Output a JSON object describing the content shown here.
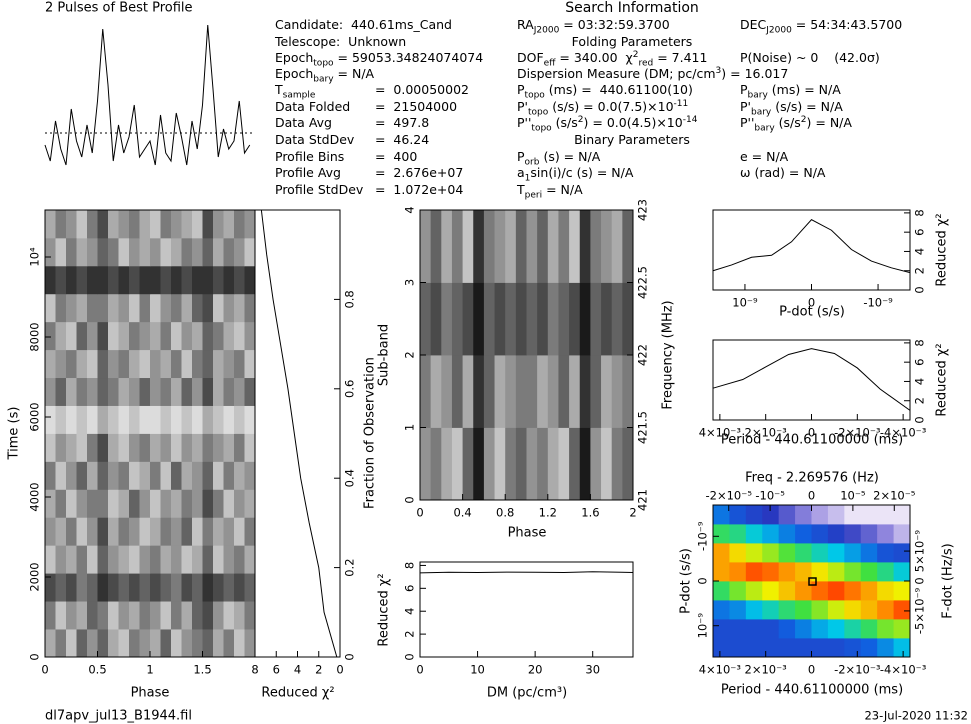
{
  "search_title": "Search Information",
  "footer": {
    "file": "dl7apv_jul13_B1944.fil",
    "date": "23-Jul-2020 11:32"
  },
  "info": {
    "lines": [
      [
        "Candidate:  440.61ms_Cand"
      ],
      [
        "Telescope:  Unknown"
      ],
      [
        "Epoch",
        {
          "sub": "topo"
        },
        " = 59053.34824074074"
      ],
      [
        "Epoch",
        {
          "sub": "bary"
        },
        " = N/A"
      ]
    ],
    "table": [
      {
        "label": [
          "T",
          {
            "sub": "sample"
          }
        ],
        "value": "=  0.00050002"
      },
      {
        "label": [
          "Data Folded"
        ],
        "value": "=  21504000"
      },
      {
        "label": [
          "Data Avg"
        ],
        "value": "=  497.8"
      },
      {
        "label": [
          "Data StdDev"
        ],
        "value": "=  46.24"
      },
      {
        "label": [
          "Profile Bins"
        ],
        "value": "=  400"
      },
      {
        "label": [
          "Profile Avg"
        ],
        "value": "=  2.676e+07"
      },
      {
        "label": [
          "Profile StdDev"
        ],
        "value": "=  1.072e+04"
      }
    ]
  },
  "search": {
    "lines": [
      {
        "left": [
          "RA",
          {
            "sub": "J2000"
          },
          " = 03:32:59.3700"
        ],
        "right": [
          "DEC",
          {
            "sub": "J2000"
          },
          " = 54:34:43.5700"
        ]
      },
      {
        "center": "Folding Parameters"
      },
      {
        "left": [
          "DOF",
          {
            "sub": "eff"
          },
          " = 340.00  χ",
          {
            "sup": "2"
          },
          {
            "sub": "red"
          },
          " = 7.411"
        ],
        "right": [
          "P(Noise) ~ 0    (42.0σ)"
        ]
      },
      {
        "left": [
          "Dispersion Measure (DM; pc/cm",
          {
            "sup": "3"
          },
          ") = 16.017"
        ]
      },
      {
        "left": [
          "P",
          {
            "sub": "topo"
          },
          " (ms) =  440.61100(10)"
        ],
        "right": [
          "P",
          {
            "sub": "bary"
          },
          " (ms) = N/A"
        ]
      },
      {
        "left": [
          "P'",
          {
            "sub": "topo"
          },
          " (s/s) = 0.0(7.5)×10",
          {
            "sup": "-11"
          }
        ],
        "right": [
          "P'",
          {
            "sub": "bary"
          },
          " (s/s) = N/A"
        ]
      },
      {
        "left": [
          "P''",
          {
            "sub": "topo"
          },
          " (s/s",
          {
            "sup": "2"
          },
          ") = 0.0(4.5)×10",
          {
            "sup": "-14"
          }
        ],
        "right": [
          "P''",
          {
            "sub": "bary"
          },
          " (s/s",
          {
            "sup": "2"
          },
          ") = N/A"
        ]
      },
      {
        "center": "Binary Parameters"
      },
      {
        "left": [
          "P",
          {
            "sub": "orb"
          },
          " (s) = N/A"
        ],
        "right": [
          "e = N/A"
        ]
      },
      {
        "left": [
          "a",
          {
            "sub": "1"
          },
          "sin(i)/c (s) = N/A"
        ],
        "right": [
          "ω (rad) = N/A"
        ]
      },
      {
        "left": [
          "T",
          {
            "sub": "peri"
          },
          " = N/A"
        ]
      }
    ]
  },
  "chart_data": [
    {
      "type": "line",
      "title": "2 Pulses of Best Profile",
      "color": "#000000",
      "xlim": [
        0,
        2
      ],
      "ylim": [
        0.2,
        1.05
      ],
      "mean": 0.46,
      "x": [
        0,
        0.05,
        0.1,
        0.15,
        0.2,
        0.25,
        0.3,
        0.35,
        0.4,
        0.45,
        0.5,
        0.55,
        0.6,
        0.65,
        0.7,
        0.75,
        0.8,
        0.85,
        0.9,
        0.95,
        1,
        1.05,
        1.1,
        1.15,
        1.2,
        1.25,
        1.3,
        1.35,
        1.4,
        1.45,
        1.5,
        1.55,
        1.6,
        1.65,
        1.7,
        1.75,
        1.8,
        1.85,
        1.9,
        1.95
      ],
      "values": [
        0.4,
        0.32,
        0.52,
        0.38,
        0.3,
        0.58,
        0.42,
        0.34,
        0.5,
        0.36,
        0.62,
        0.98,
        0.7,
        0.32,
        0.5,
        0.36,
        0.44,
        0.6,
        0.34,
        0.38,
        0.42,
        0.3,
        0.55,
        0.36,
        0.32,
        0.56,
        0.44,
        0.3,
        0.52,
        0.38,
        0.6,
        1.0,
        0.68,
        0.34,
        0.48,
        0.38,
        0.42,
        0.62,
        0.36,
        0.4
      ]
    },
    {
      "type": "heatmap",
      "xlabel": "Phase",
      "ylabel": "Time (s)",
      "xlim": [
        0,
        2
      ],
      "ylim": [
        0,
        11175
      ],
      "xticks": [
        0,
        0.5,
        1,
        1.5
      ],
      "yticks": [
        0,
        2000,
        4000,
        6000,
        8000,
        {
          "value": 10000,
          "label": "10⁴"
        }
      ],
      "zlim": [
        0,
        9
      ],
      "colormap": [
        "#f4f4f4",
        "#1a1a1a"
      ],
      "values": [
        [
          3,
          5,
          2,
          6,
          4,
          6,
          3,
          2,
          5,
          4,
          3,
          6,
          2,
          4,
          5,
          6,
          3,
          5,
          2,
          4
        ],
        [
          5,
          2,
          4,
          3,
          6,
          5,
          2,
          4,
          3,
          5,
          4,
          2,
          5,
          3,
          6,
          7,
          4,
          2,
          3,
          5
        ],
        [
          7,
          6,
          7,
          5,
          6,
          8,
          7,
          6,
          7,
          6,
          7,
          6,
          5,
          7,
          6,
          8,
          7,
          6,
          7,
          6
        ],
        [
          2,
          4,
          3,
          5,
          2,
          6,
          4,
          3,
          2,
          4,
          5,
          3,
          4,
          2,
          3,
          6,
          2,
          4,
          5,
          3
        ],
        [
          4,
          3,
          5,
          2,
          4,
          7,
          3,
          5,
          4,
          2,
          3,
          5,
          4,
          6,
          2,
          5,
          3,
          4,
          2,
          5
        ],
        [
          3,
          5,
          2,
          4,
          5,
          5,
          2,
          3,
          6,
          4,
          2,
          4,
          3,
          5,
          4,
          7,
          5,
          2,
          4,
          3
        ],
        [
          5,
          2,
          4,
          6,
          3,
          6,
          4,
          5,
          2,
          3,
          5,
          2,
          6,
          3,
          4,
          6,
          2,
          5,
          3,
          4
        ],
        [
          2,
          4,
          3,
          2,
          5,
          7,
          3,
          2,
          4,
          5,
          3,
          4,
          2,
          4,
          3,
          5,
          4,
          3,
          5,
          2
        ],
        [
          1,
          2,
          1,
          2,
          1,
          3,
          2,
          1,
          2,
          1,
          1,
          2,
          1,
          2,
          1,
          3,
          2,
          1,
          2,
          1
        ],
        [
          4,
          6,
          3,
          5,
          4,
          6,
          5,
          3,
          4,
          6,
          4,
          5,
          3,
          6,
          4,
          7,
          3,
          5,
          4,
          6
        ],
        [
          3,
          4,
          5,
          3,
          2,
          6,
          4,
          5,
          3,
          2,
          4,
          3,
          5,
          2,
          5,
          6,
          3,
          4,
          5,
          2
        ],
        [
          5,
          3,
          2,
          6,
          4,
          7,
          2,
          3,
          5,
          4,
          3,
          5,
          2,
          4,
          3,
          6,
          5,
          3,
          2,
          4
        ],
        [
          2,
          5,
          4,
          3,
          5,
          5,
          3,
          4,
          2,
          5,
          2,
          4,
          5,
          3,
          6,
          7,
          2,
          4,
          3,
          5
        ],
        [
          8,
          7,
          8,
          7,
          8,
          8,
          7,
          8,
          7,
          8,
          8,
          7,
          8,
          7,
          8,
          8,
          7,
          8,
          7,
          8
        ],
        [
          4,
          2,
          5,
          3,
          4,
          6,
          5,
          2,
          4,
          3,
          4,
          2,
          3,
          5,
          4,
          6,
          3,
          5,
          4,
          2
        ],
        [
          3,
          5,
          4,
          2,
          5,
          7,
          3,
          4,
          5,
          3,
          2,
          5,
          4,
          3,
          2,
          7,
          4,
          3,
          5,
          4
        ]
      ]
    },
    {
      "type": "line",
      "xlabel": "Reduced χ²",
      "ylabel": "Fraction of Observation",
      "color": "#000000",
      "xlim": [
        8,
        0
      ],
      "ylim": [
        0,
        1
      ],
      "xticks": [
        8,
        6,
        4,
        2,
        0
      ],
      "yticks": [
        0,
        0.2,
        0.4,
        0.6,
        0.8
      ],
      "y": [
        0,
        0.1,
        0.2,
        0.3,
        0.4,
        0.5,
        0.6,
        0.7,
        0.8,
        0.9,
        1
      ],
      "values": [
        0.3,
        1.5,
        2.0,
        2.9,
        3.7,
        4.3,
        4.9,
        5.6,
        6.3,
        6.9,
        7.4
      ]
    },
    {
      "type": "heatmap",
      "xlabel": "Phase",
      "ylabel": "Sub-band",
      "y2label": "Frequency (MHz)",
      "xlim": [
        0,
        2
      ],
      "ylim": [
        0,
        4
      ],
      "y2lim": [
        421,
        423
      ],
      "xticks": [
        0,
        0.4,
        0.8,
        1.2,
        1.6,
        2
      ],
      "yticks": [
        0,
        1,
        2,
        3,
        4
      ],
      "y2ticks": [
        421,
        421.5,
        422,
        422.5,
        423
      ],
      "zlim": [
        0,
        9
      ],
      "colormap": [
        "#f4f4f4",
        "#1a1a1a"
      ],
      "values": [
        [
          4,
          5,
          3,
          2,
          6,
          9,
          4,
          2,
          5,
          6,
          4,
          5,
          3,
          2,
          6,
          9,
          4,
          2,
          5,
          6
        ],
        [
          5,
          3,
          4,
          6,
          3,
          8,
          6,
          3,
          4,
          5,
          5,
          3,
          4,
          6,
          3,
          8,
          6,
          3,
          4,
          5
        ],
        [
          6,
          7,
          5,
          6,
          7,
          9,
          6,
          7,
          6,
          7,
          6,
          7,
          5,
          6,
          7,
          9,
          6,
          7,
          6,
          7
        ],
        [
          4,
          6,
          3,
          5,
          2,
          8,
          5,
          4,
          3,
          6,
          4,
          6,
          3,
          5,
          2,
          8,
          5,
          4,
          3,
          6
        ]
      ]
    },
    {
      "type": "line",
      "xlabel": "DM (pc/cm³)",
      "ylabel": "Reduced χ²",
      "color": "#000000",
      "xlim": [
        0,
        37
      ],
      "ylim": [
        0,
        8.3
      ],
      "xticks": [
        0,
        10,
        20,
        30
      ],
      "yticks": [
        0,
        2,
        4,
        6,
        8
      ],
      "x": [
        0,
        5,
        10,
        15,
        20,
        25,
        30,
        35,
        37
      ],
      "values": [
        7.35,
        7.4,
        7.38,
        7.42,
        7.4,
        7.38,
        7.45,
        7.4,
        7.38
      ]
    },
    {
      "type": "line",
      "xlabel": "P-dot (s/s)",
      "ylabel": "Reduced χ²",
      "color": "#000000",
      "xlim": [
        1.48e-09,
        -1.48e-09
      ],
      "ylim": [
        0,
        8.3
      ],
      "xticks": [
        {
          "value": 1e-09,
          "label": "10⁻⁹"
        },
        0,
        {
          "value": -1e-09,
          "label": "-10⁻⁹"
        }
      ],
      "yticks": [
        0,
        2,
        4,
        6,
        8
      ],
      "x": [
        1.48e-09,
        1.2e-09,
        9e-10,
        6e-10,
        3e-10,
        0,
        -3e-10,
        -6e-10,
        -9e-10,
        -1.2e-09,
        -1.48e-09
      ],
      "values": [
        2.0,
        2.6,
        3.4,
        3.6,
        5.0,
        7.3,
        6.2,
        4.2,
        3.0,
        2.3,
        1.8
      ]
    },
    {
      "type": "line",
      "xlabel": "Period - 440.61100000 (ms)",
      "ylabel": "Reduced χ²",
      "color": "#000000",
      "xlim": [
        0.0043,
        -0.0043
      ],
      "ylim": [
        0,
        8.3
      ],
      "xticks": [
        {
          "value": 0.004,
          "label": "4×10⁻³"
        },
        {
          "value": 0.002,
          "label": "2×10⁻³"
        },
        0,
        {
          "value": -0.002,
          "label": "-2×10⁻³"
        },
        {
          "value": -0.004,
          "label": "-4×10⁻³"
        }
      ],
      "yticks": [
        0,
        2,
        4,
        6,
        8
      ],
      "x": [
        0.0043,
        0.003,
        0.002,
        0.001,
        0,
        -0.001,
        -0.002,
        -0.003,
        -0.0043
      ],
      "values": [
        3.3,
        4.2,
        5.5,
        6.8,
        7.4,
        6.9,
        5.4,
        3.2,
        1.0
      ]
    },
    {
      "type": "heatmap",
      "xlabel": "Period - 440.61100000 (ms)",
      "x2label": "Freq - 2.269576 (Hz)",
      "ylabel": "P-dot (s/s)",
      "y2label": "F-dot (Hz/s)",
      "xlim": [
        0.0043,
        -0.0043
      ],
      "x2lim": [
        -2.38e-05,
        2.38e-05
      ],
      "ylim": [
        1.7e-09,
        -1.7e-09
      ],
      "y2lim": [
        -1.27e-08,
        1.27e-08
      ],
      "xticks": [
        {
          "value": 0.004,
          "label": "4×10⁻³"
        },
        {
          "value": 0.002,
          "label": "2×10⁻³"
        },
        0,
        {
          "value": -0.002,
          "label": "-2×10⁻³"
        },
        {
          "value": -0.004,
          "label": "-4×10⁻³"
        }
      ],
      "x2ticks": [
        {
          "value": -2e-05,
          "label": "-2×10⁻⁵"
        },
        {
          "value": -1e-05,
          "label": "-10⁻⁵"
        },
        0,
        {
          "value": 1e-05,
          "label": "10⁻⁵"
        },
        {
          "value": 2e-05,
          "label": "2×10⁻⁵"
        }
      ],
      "yticks": [
        {
          "value": -1e-09,
          "label": "-10⁻⁹"
        },
        0,
        {
          "value": 1e-09,
          "label": "10⁻⁹"
        }
      ],
      "y2ticks": [
        {
          "value": 5e-09,
          "label": "5×10⁻⁹"
        },
        0,
        {
          "value": -5e-09,
          "label": "-5×10⁻⁹"
        }
      ],
      "zlim": [
        0,
        8
      ],
      "colormap": [
        "#f4eefa",
        "#9a8ee0",
        "#2838c0",
        "#1060e0",
        "#00c8e8",
        "#40e040",
        "#f0f000",
        "#ff8000",
        "#ff1000"
      ],
      "values": [
        [
          2.5,
          2.5,
          2.5,
          2.5,
          2.5,
          2.5,
          2.5,
          2.5,
          2.7,
          3.0,
          3.4,
          3.9
        ],
        [
          2.5,
          2.5,
          2.5,
          2.5,
          2.9,
          3.3,
          3.7,
          4.0,
          4.4,
          4.8,
          5.3,
          5.5
        ],
        [
          3.2,
          3.4,
          3.9,
          4.3,
          4.7,
          5.0,
          5.4,
          5.8,
          6.2,
          6.5,
          6.9,
          7.4
        ],
        [
          4.8,
          5.3,
          5.7,
          6.0,
          6.4,
          6.8,
          7.2,
          7.5,
          7.1,
          6.7,
          6.2,
          6.0
        ],
        [
          6.7,
          6.9,
          7.4,
          7.2,
          6.8,
          6.5,
          6.1,
          5.7,
          5.3,
          5.0,
          4.6,
          4.1
        ],
        [
          6.7,
          6.2,
          5.8,
          5.5,
          5.1,
          4.7,
          4.3,
          4.0,
          3.6,
          3.2,
          2.7,
          2.5
        ],
        [
          4.8,
          4.6,
          4.1,
          3.7,
          3.3,
          3.0,
          2.6,
          2.2,
          1.8,
          1.5,
          1.1,
          0.6
        ],
        [
          3.2,
          2.7,
          2.3,
          2.0,
          1.6,
          1.2,
          0.8,
          0.5,
          0.1,
          0.1,
          0.1,
          0.1
        ]
      ]
    }
  ]
}
